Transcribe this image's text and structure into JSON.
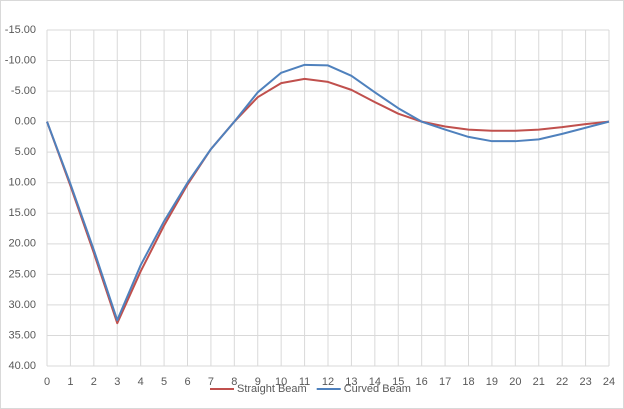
{
  "chart_data": {
    "type": "line",
    "categories": [
      0,
      1,
      2,
      3,
      4,
      5,
      6,
      7,
      8,
      9,
      10,
      11,
      12,
      13,
      14,
      15,
      16,
      17,
      18,
      19,
      20,
      21,
      22,
      23,
      24
    ],
    "series": [
      {
        "name": "Straight Beam",
        "color": "#c0504d",
        "values": [
          0,
          10.5,
          21.5,
          33,
          24.5,
          17,
          10.3,
          4.5,
          0,
          -4,
          -6.3,
          -7,
          -6.5,
          -5.2,
          -3.2,
          -1.3,
          0,
          0.8,
          1.3,
          1.5,
          1.5,
          1.3,
          0.9,
          0.4,
          0
        ]
      },
      {
        "name": "Curved Beam",
        "color": "#4f81bd",
        "values": [
          0,
          10.2,
          21,
          32.5,
          23.5,
          16.3,
          10,
          4.5,
          0,
          -4.8,
          -8,
          -9.3,
          -9.2,
          -7.5,
          -4.8,
          -2.2,
          0,
          1.3,
          2.5,
          3.2,
          3.2,
          2.9,
          2,
          1,
          0
        ]
      }
    ],
    "ylim": [
      -15,
      40
    ],
    "y_reversed": true,
    "yticks": [
      {
        "value": -15,
        "label": "-15.00"
      },
      {
        "value": -10,
        "label": "-10.00"
      },
      {
        "value": -5,
        "label": "-5.00"
      },
      {
        "value": 0,
        "label": "0.00"
      },
      {
        "value": 5,
        "label": "5.00"
      },
      {
        "value": 10,
        "label": "10.00"
      },
      {
        "value": 15,
        "label": "15.00"
      },
      {
        "value": 20,
        "label": "20.00"
      },
      {
        "value": 25,
        "label": "25.00"
      },
      {
        "value": 30,
        "label": "30.00"
      },
      {
        "value": 35,
        "label": "35.00"
      },
      {
        "value": 40,
        "label": "40.00"
      }
    ],
    "grid": true,
    "legend": "bottom"
  }
}
